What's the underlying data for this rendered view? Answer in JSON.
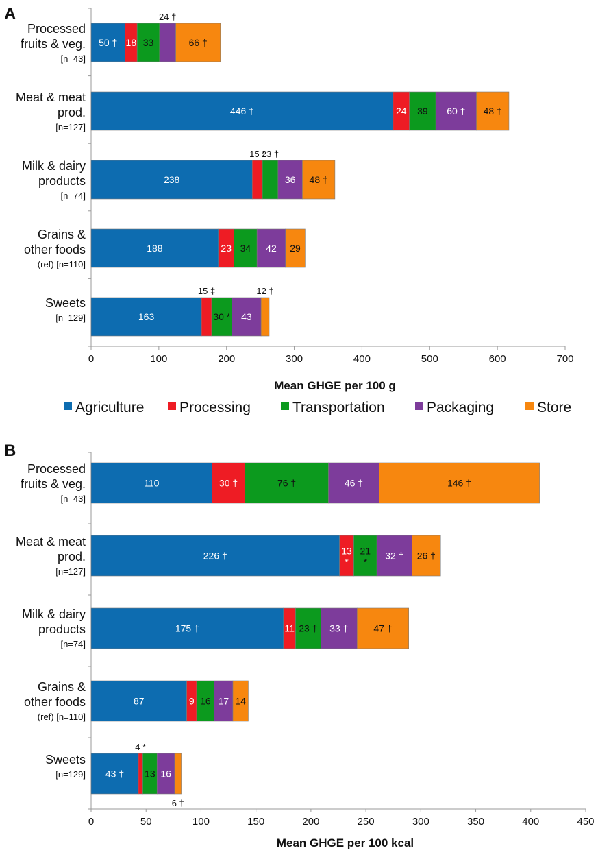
{
  "legend": {
    "items": [
      {
        "label": "Agriculture",
        "color": "#0d6cb0"
      },
      {
        "label": "Processing",
        "color": "#ee1c24"
      },
      {
        "label": "Transportation",
        "color": "#0c9a1e"
      },
      {
        "label": "Packaging",
        "color": "#7d3c9b"
      },
      {
        "label": "Store",
        "color": "#f7870f"
      }
    ]
  },
  "chart_data": [
    {
      "type": "bar",
      "orientation": "horizontal",
      "stacked": true,
      "panel_label": "A",
      "title": "",
      "xlabel": "Mean GHGE per 100 g",
      "ylabel": "",
      "xlim": [
        0,
        700
      ],
      "xticks": [
        0,
        100,
        200,
        300,
        400,
        500,
        600,
        700
      ],
      "categories": [
        {
          "lines": [
            "Processed",
            "fruits & veg."
          ],
          "n": "[n=43]"
        },
        {
          "lines": [
            "Meat & meat",
            "prod."
          ],
          "n": "[n=127]"
        },
        {
          "lines": [
            "Milk & dairy",
            "products"
          ],
          "n": "[n=74]"
        },
        {
          "lines": [
            "Grains &",
            "other foods"
          ],
          "n": "(ref) [n=110]"
        },
        {
          "lines": [
            "Sweets"
          ],
          "n": "[n=129]"
        }
      ],
      "series": [
        {
          "name": "Agriculture",
          "values": [
            50,
            446,
            238,
            188,
            163
          ],
          "labels": [
            "50 †",
            "446 †",
            "238",
            "188",
            "163"
          ]
        },
        {
          "name": "Processing",
          "values": [
            18,
            24,
            15,
            23,
            15
          ],
          "labels": [
            "18",
            "24",
            "",
            "23",
            ""
          ]
        },
        {
          "name": "Transportation",
          "values": [
            33,
            39,
            23,
            34,
            30
          ],
          "labels": [
            "33",
            "39",
            "",
            "34",
            "30 *"
          ]
        },
        {
          "name": "Packaging",
          "values": [
            24,
            60,
            36,
            42,
            43
          ],
          "labels": [
            "",
            "60 †",
            "36",
            "42",
            "43"
          ]
        },
        {
          "name": "Store",
          "values": [
            66,
            48,
            48,
            29,
            12
          ],
          "labels": [
            "66 †",
            "48 †",
            "48 †",
            "29",
            ""
          ]
        }
      ],
      "annotations": [
        {
          "category": 0,
          "series": 3,
          "text": "24 †",
          "position": "above"
        },
        {
          "category": 2,
          "series": 1,
          "text": "15 *",
          "position": "above"
        },
        {
          "category": 2,
          "series": 2,
          "text": "23 †",
          "position": "above"
        },
        {
          "category": 4,
          "series": 1,
          "text": "15 ‡",
          "position": "above"
        },
        {
          "category": 4,
          "series": 4,
          "text": "12 †",
          "position": "above"
        }
      ]
    },
    {
      "type": "bar",
      "orientation": "horizontal",
      "stacked": true,
      "panel_label": "B",
      "title": "",
      "xlabel": "Mean GHGE per 100 kcal",
      "ylabel": "",
      "xlim": [
        0,
        450
      ],
      "xticks": [
        0,
        50,
        100,
        150,
        200,
        250,
        300,
        350,
        400,
        450
      ],
      "categories": [
        {
          "lines": [
            "Processed",
            "fruits & veg."
          ],
          "n": "[n=43]"
        },
        {
          "lines": [
            "Meat & meat",
            "prod."
          ],
          "n": "[n=127]"
        },
        {
          "lines": [
            "Milk & dairy",
            "products"
          ],
          "n": "[n=74]"
        },
        {
          "lines": [
            "Grains &",
            "other foods"
          ],
          "n": "(ref) [n=110]"
        },
        {
          "lines": [
            "Sweets"
          ],
          "n": "[n=129]"
        }
      ],
      "series": [
        {
          "name": "Agriculture",
          "values": [
            110,
            226,
            175,
            87,
            43
          ],
          "labels": [
            "110",
            "226 †",
            "175 †",
            "87",
            "43 †"
          ]
        },
        {
          "name": "Processing",
          "values": [
            30,
            13,
            11,
            9,
            4
          ],
          "labels": [
            "30 †",
            "13|*",
            "11",
            "9",
            ""
          ]
        },
        {
          "name": "Transportation",
          "values": [
            76,
            21,
            23,
            16,
            13
          ],
          "labels": [
            "76 †",
            "21|*",
            "23 †",
            "16",
            "13"
          ]
        },
        {
          "name": "Packaging",
          "values": [
            46,
            32,
            33,
            17,
            16
          ],
          "labels": [
            "46 †",
            "32 †",
            "33 †",
            "17",
            "16"
          ]
        },
        {
          "name": "Store",
          "values": [
            146,
            26,
            47,
            14,
            6
          ],
          "labels": [
            "146 †",
            "26 †",
            "47 †",
            "14",
            ""
          ]
        }
      ],
      "annotations": [
        {
          "category": 4,
          "series": 1,
          "text": "4 *",
          "position": "above"
        },
        {
          "category": 4,
          "series": 4,
          "text": "6 †",
          "position": "below"
        }
      ]
    }
  ]
}
